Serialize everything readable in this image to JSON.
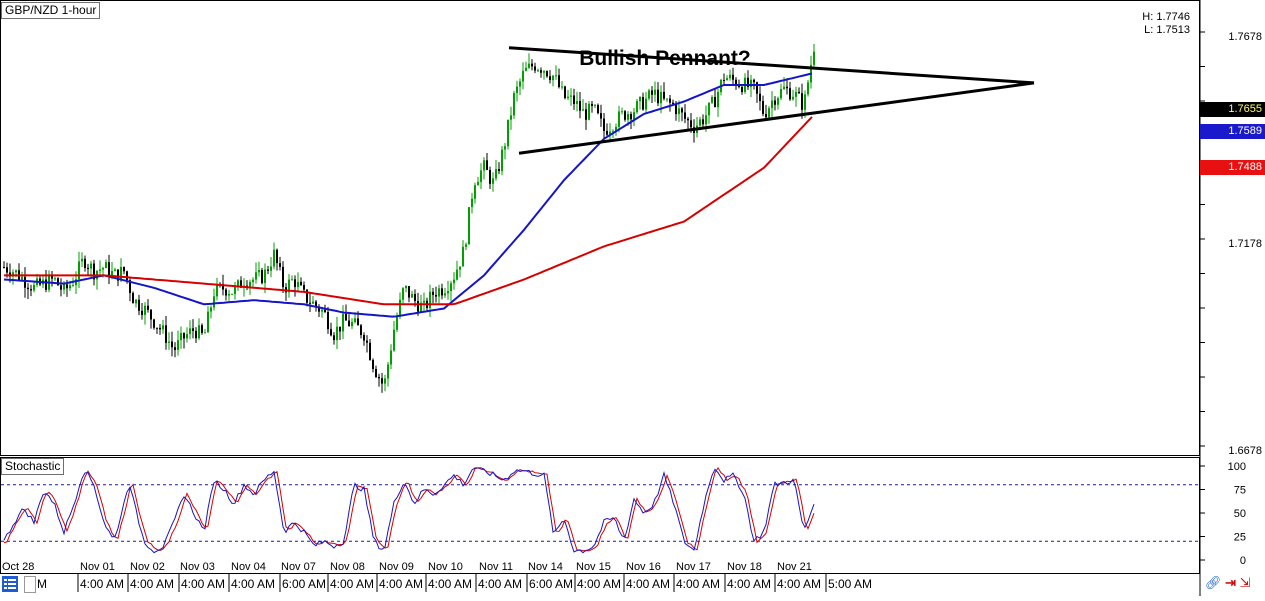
{
  "symbol_label": "GBP/NZD 1-hour",
  "high_label": "H: 1.7746",
  "low_label": "L: 1.7513",
  "chart_title": "Bullish Pennant?",
  "indicator_label": "Stochastic",
  "price_tags": {
    "last": {
      "text": "1.7655",
      "bg": "#000000",
      "fg": "#ffff66"
    },
    "blue_ma": {
      "text": "1.7589",
      "bg": "#1a1acc",
      "fg": "#ffffff"
    },
    "red_ma": {
      "text": "1.7488",
      "bg": "#e81010",
      "fg": "#ffffff"
    }
  },
  "colors": {
    "up_candle": "#00a000",
    "down_candle": "#000000",
    "blue_ma": "#1515c8",
    "red_ma": "#d60000",
    "stoch_k": "#1515c8",
    "stoch_d": "#d60000",
    "trendline": "#000000",
    "stoch_level": "#1a1aa0"
  },
  "toolbar": {
    "left_icon": "list-icon",
    "box_label": "M",
    "icons": [
      "link-icon",
      "arrow-in-icon",
      "arrow-split-icon"
    ]
  },
  "chart_data": [
    {
      "type": "candlestick",
      "title": "Bullish Pennant?",
      "series_label": "GBP/NZD 1-hour",
      "ylim": [
        1.6678,
        1.7746
      ],
      "price_axis_ticks": [
        {
          "value": 1.7678,
          "label": "1.7678"
        },
        {
          "value": 1.7178,
          "label": "1.7178"
        },
        {
          "value": 1.6678,
          "label": "1.6678"
        }
      ],
      "session_labels": [
        "Oct 28",
        "Nov 01",
        "Nov 02",
        "Nov 03",
        "Nov 04",
        "Nov 07",
        "Nov 08",
        "Nov 09",
        "Nov 10",
        "Nov 11",
        "Nov 14",
        "Nov 15",
        "Nov 16",
        "Nov 17",
        "Nov 18",
        "Nov 21"
      ],
      "time_labels": [
        "4:00 AM",
        "4:00 AM",
        "4:00 AM",
        "4:00 AM",
        "6:00 AM",
        "4:00 AM",
        "4:00 AM",
        "4:00 AM",
        "4:00 AM",
        "6:00 AM",
        "4:00 AM",
        "4:00 AM",
        "4:00 AM",
        "4:00 AM",
        "4:00 AM",
        "5:00 AM"
      ],
      "close_path": [
        [
          0,
          1.712
        ],
        [
          10,
          1.711
        ],
        [
          20,
          1.709
        ],
        [
          30,
          1.707
        ],
        [
          40,
          1.708
        ],
        [
          50,
          1.709
        ],
        [
          60,
          1.706
        ],
        [
          70,
          1.709
        ],
        [
          80,
          1.714
        ],
        [
          90,
          1.711
        ],
        [
          100,
          1.712
        ],
        [
          110,
          1.71
        ],
        [
          120,
          1.711
        ],
        [
          130,
          1.704
        ],
        [
          140,
          1.702
        ],
        [
          150,
          1.699
        ],
        [
          160,
          1.696
        ],
        [
          170,
          1.692
        ],
        [
          180,
          1.695
        ],
        [
          190,
          1.697
        ],
        [
          200,
          1.695
        ],
        [
          210,
          1.706
        ],
        [
          220,
          1.707
        ],
        [
          230,
          1.706
        ],
        [
          240,
          1.709
        ],
        [
          250,
          1.709
        ],
        [
          260,
          1.71
        ],
        [
          270,
          1.715
        ],
        [
          280,
          1.707
        ],
        [
          290,
          1.709
        ],
        [
          300,
          1.705
        ],
        [
          310,
          1.703
        ],
        [
          320,
          1.701
        ],
        [
          330,
          1.696
        ],
        [
          340,
          1.699
        ],
        [
          350,
          1.698
        ],
        [
          360,
          1.696
        ],
        [
          370,
          1.688
        ],
        [
          380,
          1.683
        ],
        [
          390,
          1.697
        ],
        [
          400,
          1.707
        ],
        [
          410,
          1.704
        ],
        [
          420,
          1.702
        ],
        [
          430,
          1.706
        ],
        [
          440,
          1.707
        ],
        [
          450,
          1.71
        ],
        [
          460,
          1.716
        ],
        [
          470,
          1.733
        ],
        [
          480,
          1.736
        ],
        [
          490,
          1.732
        ],
        [
          500,
          1.741
        ],
        [
          510,
          1.753
        ],
        [
          520,
          1.759
        ],
        [
          530,
          1.761
        ],
        [
          540,
          1.76
        ],
        [
          550,
          1.758
        ],
        [
          560,
          1.753
        ],
        [
          570,
          1.752
        ],
        [
          580,
          1.749
        ],
        [
          590,
          1.75
        ],
        [
          600,
          1.745
        ],
        [
          610,
          1.747
        ],
        [
          620,
          1.749
        ],
        [
          630,
          1.75
        ],
        [
          640,
          1.752
        ],
        [
          650,
          1.754
        ],
        [
          660,
          1.752
        ],
        [
          670,
          1.751
        ],
        [
          680,
          1.748
        ],
        [
          690,
          1.746
        ],
        [
          700,
          1.748
        ],
        [
          710,
          1.752
        ],
        [
          720,
          1.758
        ],
        [
          730,
          1.757
        ],
        [
          740,
          1.756
        ],
        [
          750,
          1.755
        ],
        [
          760,
          1.749
        ],
        [
          770,
          1.753
        ],
        [
          780,
          1.755
        ],
        [
          790,
          1.754
        ],
        [
          800,
          1.751
        ],
        [
          810,
          1.7655
        ]
      ],
      "moving_averages": [
        {
          "color": "blue",
          "last_value": 1.7589,
          "path": [
            [
              0,
              1.709
            ],
            [
              60,
              1.708
            ],
            [
              100,
              1.71
            ],
            [
              150,
              1.707
            ],
            [
              200,
              1.703
            ],
            [
              250,
              1.704
            ],
            [
              300,
              1.703
            ],
            [
              340,
              1.701
            ],
            [
              390,
              1.7
            ],
            [
              440,
              1.702
            ],
            [
              480,
              1.71
            ],
            [
              520,
              1.721
            ],
            [
              560,
              1.733
            ],
            [
              600,
              1.743
            ],
            [
              640,
              1.749
            ],
            [
              680,
              1.752
            ],
            [
              720,
              1.756
            ],
            [
              760,
              1.756
            ],
            [
              810,
              1.7589
            ]
          ]
        },
        {
          "color": "red",
          "last_value": 1.7488,
          "path": [
            [
              0,
              1.71
            ],
            [
              100,
              1.71
            ],
            [
              200,
              1.708
            ],
            [
              300,
              1.706
            ],
            [
              380,
              1.703
            ],
            [
              450,
              1.703
            ],
            [
              520,
              1.709
            ],
            [
              600,
              1.717
            ],
            [
              680,
              1.723
            ],
            [
              760,
              1.736
            ],
            [
              810,
              1.7488
            ]
          ]
        }
      ],
      "trendlines": [
        {
          "name": "upper",
          "points": [
            [
              505,
              1.765
            ],
            [
              1030,
              1.7565
            ]
          ]
        },
        {
          "name": "lower",
          "points": [
            [
              515,
              1.7395
            ],
            [
              1030,
              1.7565
            ]
          ]
        }
      ]
    },
    {
      "type": "line",
      "title": "Stochastic",
      "ylim": [
        0,
        100
      ],
      "y_ticks": [
        100,
        75,
        50,
        25,
        0
      ],
      "levels": [
        80,
        20
      ],
      "k_path": [
        [
          0,
          20
        ],
        [
          10,
          40
        ],
        [
          20,
          55
        ],
        [
          30,
          40
        ],
        [
          40,
          75
        ],
        [
          50,
          60
        ],
        [
          60,
          30
        ],
        [
          70,
          60
        ],
        [
          80,
          97
        ],
        [
          90,
          80
        ],
        [
          100,
          40
        ],
        [
          110,
          20
        ],
        [
          120,
          60
        ],
        [
          125,
          85
        ],
        [
          130,
          60
        ],
        [
          140,
          20
        ],
        [
          150,
          10
        ],
        [
          160,
          15
        ],
        [
          170,
          40
        ],
        [
          180,
          70
        ],
        [
          190,
          50
        ],
        [
          200,
          30
        ],
        [
          210,
          85
        ],
        [
          220,
          75
        ],
        [
          230,
          60
        ],
        [
          240,
          80
        ],
        [
          250,
          70
        ],
        [
          260,
          85
        ],
        [
          270,
          95
        ],
        [
          280,
          30
        ],
        [
          290,
          40
        ],
        [
          300,
          30
        ],
        [
          310,
          15
        ],
        [
          320,
          20
        ],
        [
          330,
          15
        ],
        [
          340,
          20
        ],
        [
          350,
          80
        ],
        [
          360,
          75
        ],
        [
          370,
          20
        ],
        [
          380,
          10
        ],
        [
          390,
          60
        ],
        [
          400,
          85
        ],
        [
          410,
          60
        ],
        [
          420,
          75
        ],
        [
          430,
          70
        ],
        [
          440,
          80
        ],
        [
          450,
          90
        ],
        [
          460,
          80
        ],
        [
          470,
          100
        ],
        [
          480,
          95
        ],
        [
          490,
          90
        ],
        [
          500,
          85
        ],
        [
          510,
          95
        ],
        [
          520,
          95
        ],
        [
          530,
          92
        ],
        [
          540,
          90
        ],
        [
          550,
          25
        ],
        [
          560,
          45
        ],
        [
          570,
          10
        ],
        [
          580,
          10
        ],
        [
          590,
          15
        ],
        [
          600,
          40
        ],
        [
          610,
          45
        ],
        [
          620,
          20
        ],
        [
          630,
          65
        ],
        [
          640,
          50
        ],
        [
          650,
          60
        ],
        [
          660,
          90
        ],
        [
          670,
          60
        ],
        [
          680,
          20
        ],
        [
          690,
          10
        ],
        [
          700,
          60
        ],
        [
          710,
          100
        ],
        [
          720,
          85
        ],
        [
          730,
          90
        ],
        [
          740,
          70
        ],
        [
          750,
          20
        ],
        [
          760,
          30
        ],
        [
          770,
          80
        ],
        [
          790,
          85
        ],
        [
          800,
          30
        ],
        [
          810,
          60
        ]
      ]
    }
  ]
}
